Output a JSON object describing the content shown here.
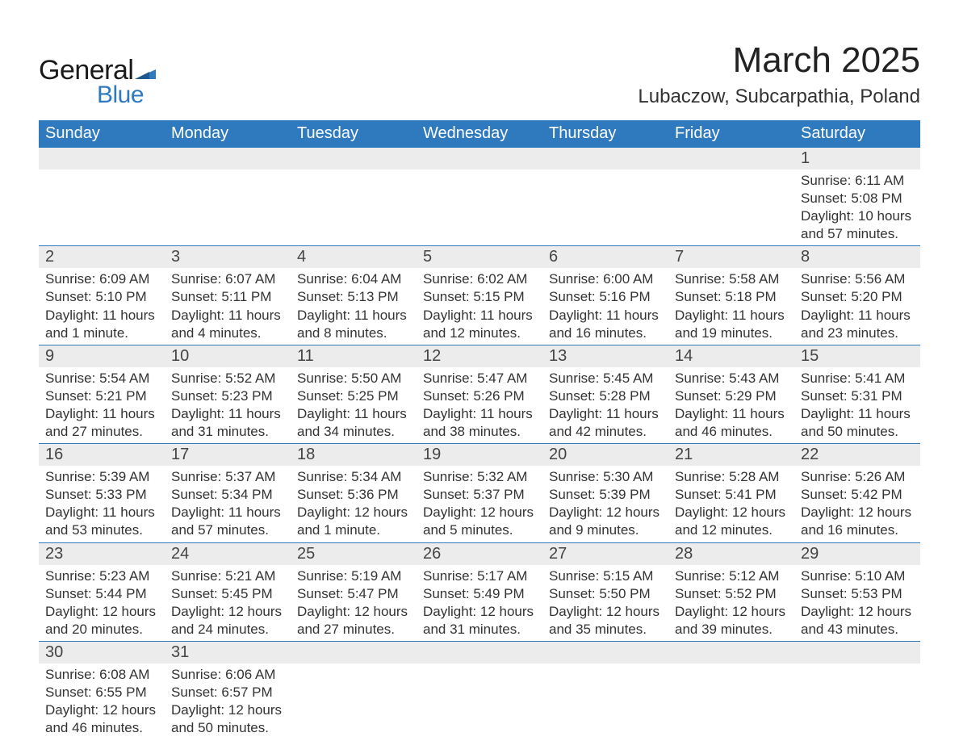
{
  "brand": {
    "word1": "General",
    "word2": "Blue",
    "flag_color": "#2f7abf"
  },
  "title": "March 2025",
  "location": "Lubaczow, Subcarpathia, Poland",
  "colors": {
    "header_bg": "#2f7abf",
    "header_text": "#ffffff",
    "daynum_bg": "#ececec",
    "border": "#2f7abf",
    "body_text": "#333333",
    "page_bg": "#ffffff"
  },
  "typography": {
    "title_fontsize": 44,
    "location_fontsize": 24,
    "header_fontsize": 20,
    "daynum_fontsize": 20,
    "detail_fontsize": 17
  },
  "day_headers": [
    "Sunday",
    "Monday",
    "Tuesday",
    "Wednesday",
    "Thursday",
    "Friday",
    "Saturday"
  ],
  "weeks": [
    [
      null,
      null,
      null,
      null,
      null,
      null,
      {
        "n": "1",
        "sunrise": "Sunrise: 6:11 AM",
        "sunset": "Sunset: 5:08 PM",
        "day1": "Daylight: 10 hours",
        "day2": "and 57 minutes."
      }
    ],
    [
      {
        "n": "2",
        "sunrise": "Sunrise: 6:09 AM",
        "sunset": "Sunset: 5:10 PM",
        "day1": "Daylight: 11 hours",
        "day2": "and 1 minute."
      },
      {
        "n": "3",
        "sunrise": "Sunrise: 6:07 AM",
        "sunset": "Sunset: 5:11 PM",
        "day1": "Daylight: 11 hours",
        "day2": "and 4 minutes."
      },
      {
        "n": "4",
        "sunrise": "Sunrise: 6:04 AM",
        "sunset": "Sunset: 5:13 PM",
        "day1": "Daylight: 11 hours",
        "day2": "and 8 minutes."
      },
      {
        "n": "5",
        "sunrise": "Sunrise: 6:02 AM",
        "sunset": "Sunset: 5:15 PM",
        "day1": "Daylight: 11 hours",
        "day2": "and 12 minutes."
      },
      {
        "n": "6",
        "sunrise": "Sunrise: 6:00 AM",
        "sunset": "Sunset: 5:16 PM",
        "day1": "Daylight: 11 hours",
        "day2": "and 16 minutes."
      },
      {
        "n": "7",
        "sunrise": "Sunrise: 5:58 AM",
        "sunset": "Sunset: 5:18 PM",
        "day1": "Daylight: 11 hours",
        "day2": "and 19 minutes."
      },
      {
        "n": "8",
        "sunrise": "Sunrise: 5:56 AM",
        "sunset": "Sunset: 5:20 PM",
        "day1": "Daylight: 11 hours",
        "day2": "and 23 minutes."
      }
    ],
    [
      {
        "n": "9",
        "sunrise": "Sunrise: 5:54 AM",
        "sunset": "Sunset: 5:21 PM",
        "day1": "Daylight: 11 hours",
        "day2": "and 27 minutes."
      },
      {
        "n": "10",
        "sunrise": "Sunrise: 5:52 AM",
        "sunset": "Sunset: 5:23 PM",
        "day1": "Daylight: 11 hours",
        "day2": "and 31 minutes."
      },
      {
        "n": "11",
        "sunrise": "Sunrise: 5:50 AM",
        "sunset": "Sunset: 5:25 PM",
        "day1": "Daylight: 11 hours",
        "day2": "and 34 minutes."
      },
      {
        "n": "12",
        "sunrise": "Sunrise: 5:47 AM",
        "sunset": "Sunset: 5:26 PM",
        "day1": "Daylight: 11 hours",
        "day2": "and 38 minutes."
      },
      {
        "n": "13",
        "sunrise": "Sunrise: 5:45 AM",
        "sunset": "Sunset: 5:28 PM",
        "day1": "Daylight: 11 hours",
        "day2": "and 42 minutes."
      },
      {
        "n": "14",
        "sunrise": "Sunrise: 5:43 AM",
        "sunset": "Sunset: 5:29 PM",
        "day1": "Daylight: 11 hours",
        "day2": "and 46 minutes."
      },
      {
        "n": "15",
        "sunrise": "Sunrise: 5:41 AM",
        "sunset": "Sunset: 5:31 PM",
        "day1": "Daylight: 11 hours",
        "day2": "and 50 minutes."
      }
    ],
    [
      {
        "n": "16",
        "sunrise": "Sunrise: 5:39 AM",
        "sunset": "Sunset: 5:33 PM",
        "day1": "Daylight: 11 hours",
        "day2": "and 53 minutes."
      },
      {
        "n": "17",
        "sunrise": "Sunrise: 5:37 AM",
        "sunset": "Sunset: 5:34 PM",
        "day1": "Daylight: 11 hours",
        "day2": "and 57 minutes."
      },
      {
        "n": "18",
        "sunrise": "Sunrise: 5:34 AM",
        "sunset": "Sunset: 5:36 PM",
        "day1": "Daylight: 12 hours",
        "day2": "and 1 minute."
      },
      {
        "n": "19",
        "sunrise": "Sunrise: 5:32 AM",
        "sunset": "Sunset: 5:37 PM",
        "day1": "Daylight: 12 hours",
        "day2": "and 5 minutes."
      },
      {
        "n": "20",
        "sunrise": "Sunrise: 5:30 AM",
        "sunset": "Sunset: 5:39 PM",
        "day1": "Daylight: 12 hours",
        "day2": "and 9 minutes."
      },
      {
        "n": "21",
        "sunrise": "Sunrise: 5:28 AM",
        "sunset": "Sunset: 5:41 PM",
        "day1": "Daylight: 12 hours",
        "day2": "and 12 minutes."
      },
      {
        "n": "22",
        "sunrise": "Sunrise: 5:26 AM",
        "sunset": "Sunset: 5:42 PM",
        "day1": "Daylight: 12 hours",
        "day2": "and 16 minutes."
      }
    ],
    [
      {
        "n": "23",
        "sunrise": "Sunrise: 5:23 AM",
        "sunset": "Sunset: 5:44 PM",
        "day1": "Daylight: 12 hours",
        "day2": "and 20 minutes."
      },
      {
        "n": "24",
        "sunrise": "Sunrise: 5:21 AM",
        "sunset": "Sunset: 5:45 PM",
        "day1": "Daylight: 12 hours",
        "day2": "and 24 minutes."
      },
      {
        "n": "25",
        "sunrise": "Sunrise: 5:19 AM",
        "sunset": "Sunset: 5:47 PM",
        "day1": "Daylight: 12 hours",
        "day2": "and 27 minutes."
      },
      {
        "n": "26",
        "sunrise": "Sunrise: 5:17 AM",
        "sunset": "Sunset: 5:49 PM",
        "day1": "Daylight: 12 hours",
        "day2": "and 31 minutes."
      },
      {
        "n": "27",
        "sunrise": "Sunrise: 5:15 AM",
        "sunset": "Sunset: 5:50 PM",
        "day1": "Daylight: 12 hours",
        "day2": "and 35 minutes."
      },
      {
        "n": "28",
        "sunrise": "Sunrise: 5:12 AM",
        "sunset": "Sunset: 5:52 PM",
        "day1": "Daylight: 12 hours",
        "day2": "and 39 minutes."
      },
      {
        "n": "29",
        "sunrise": "Sunrise: 5:10 AM",
        "sunset": "Sunset: 5:53 PM",
        "day1": "Daylight: 12 hours",
        "day2": "and 43 minutes."
      }
    ],
    [
      {
        "n": "30",
        "sunrise": "Sunrise: 6:08 AM",
        "sunset": "Sunset: 6:55 PM",
        "day1": "Daylight: 12 hours",
        "day2": "and 46 minutes."
      },
      {
        "n": "31",
        "sunrise": "Sunrise: 6:06 AM",
        "sunset": "Sunset: 6:57 PM",
        "day1": "Daylight: 12 hours",
        "day2": "and 50 minutes."
      },
      null,
      null,
      null,
      null,
      null
    ]
  ]
}
